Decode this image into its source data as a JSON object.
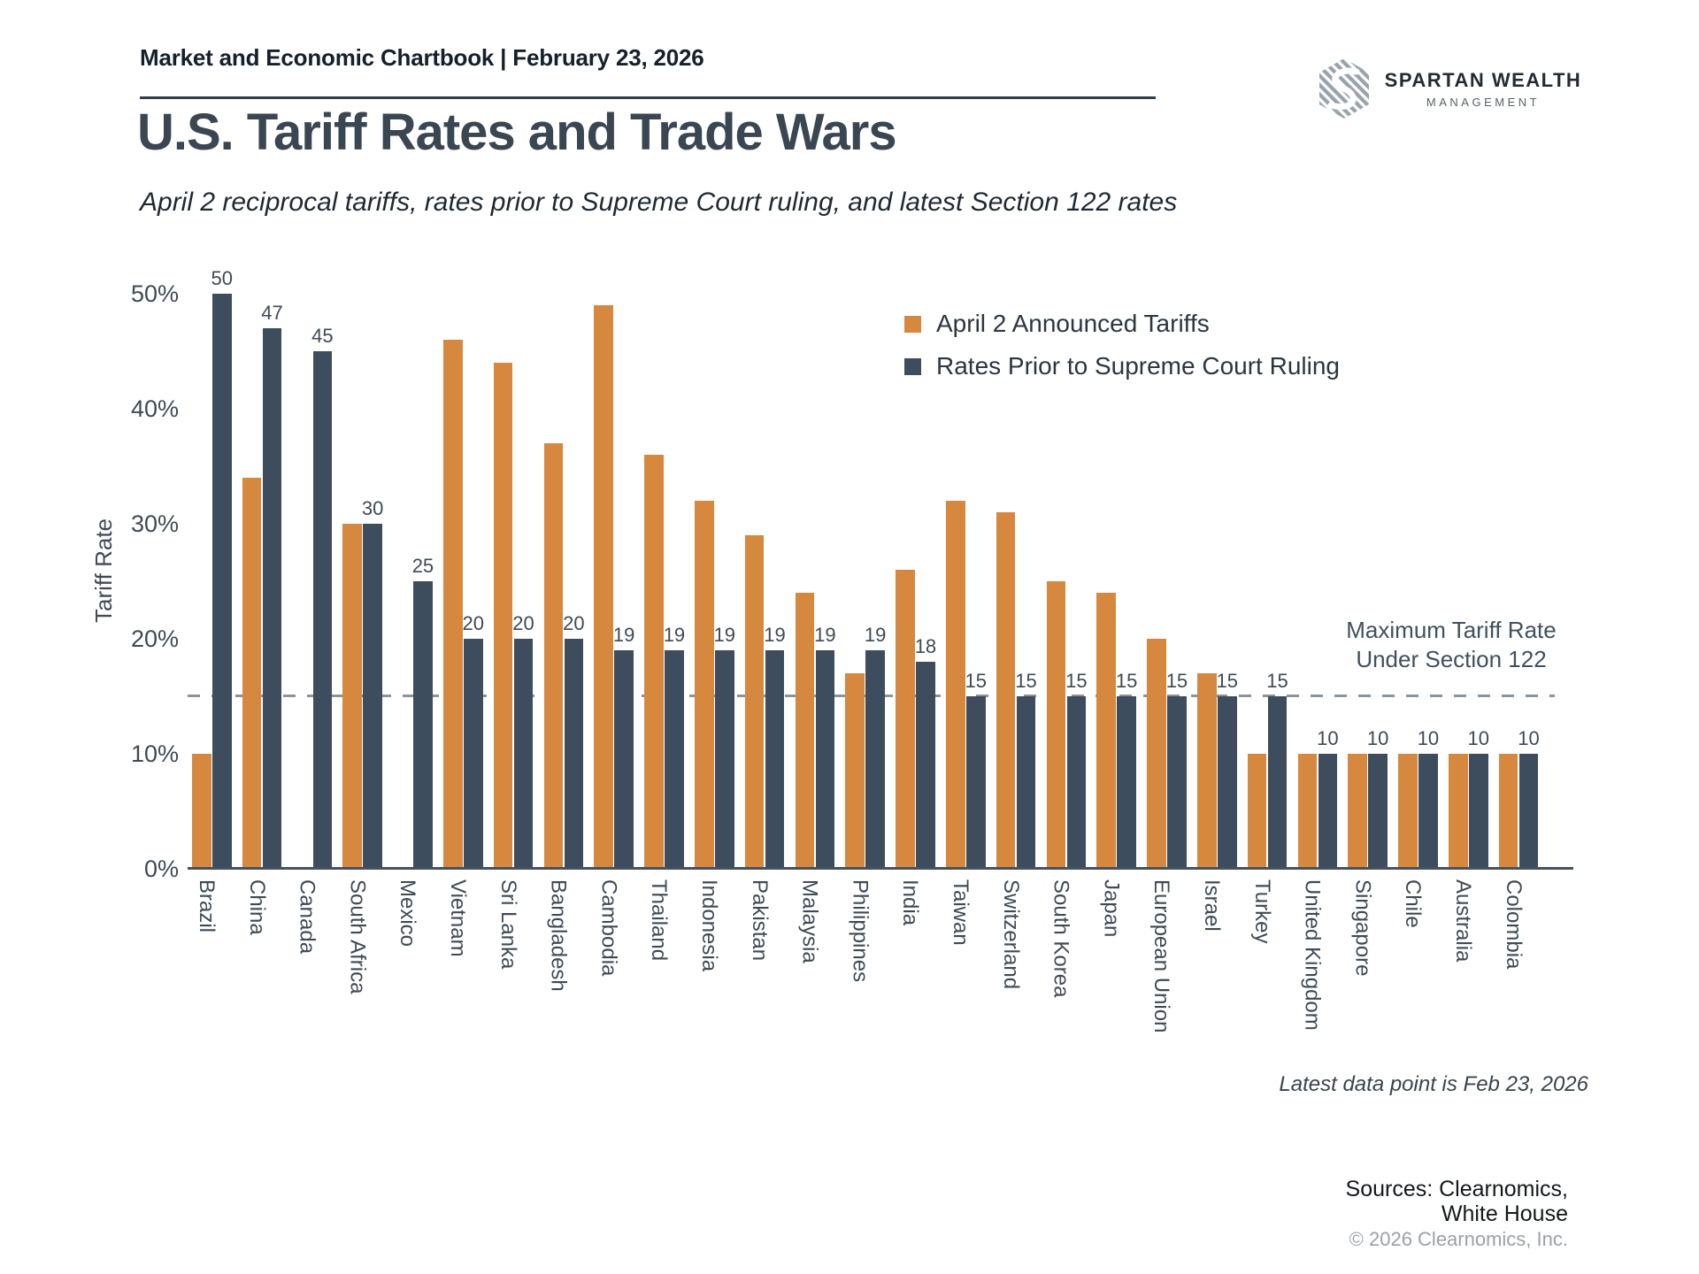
{
  "header": {
    "chartbook_label": "Market and Economic Chartbook | February 23, 2026",
    "logo_name": "SPARTAN WEALTH",
    "logo_subname": "MANAGEMENT"
  },
  "title": "U.S. Tariff Rates and Trade Wars",
  "subtitle": "April 2 reciprocal tariffs, rates prior to Supreme Court ruling, and latest Section 122 rates",
  "chart_data": {
    "type": "bar",
    "title": "U.S. Tariff Rates and Trade Wars",
    "xlabel": "",
    "ylabel": "Tariff Rate",
    "ylim": [
      0,
      50
    ],
    "yticks": [
      0,
      10,
      20,
      30,
      40,
      50
    ],
    "ytick_labels": [
      "0%",
      "10%",
      "20%",
      "30%",
      "40%",
      "50%"
    ],
    "grid": false,
    "legend_position": "top-right",
    "categories": [
      "Brazil",
      "China",
      "Canada",
      "South Africa",
      "Mexico",
      "Vietnam",
      "Sri Lanka",
      "Bangladesh",
      "Cambodia",
      "Thailand",
      "Indonesia",
      "Pakistan",
      "Malaysia",
      "Philippines",
      "India",
      "Taiwan",
      "Switzerland",
      "South Korea",
      "Japan",
      "European Union",
      "Israel",
      "Turkey",
      "United Kingdom",
      "Singapore",
      "Chile",
      "Australia",
      "Colombia"
    ],
    "series": [
      {
        "name": "April 2 Announced Tariffs",
        "color": "#D6893E",
        "values": [
          10,
          34,
          null,
          30,
          null,
          46,
          44,
          37,
          49,
          36,
          32,
          29,
          24,
          17,
          26,
          32,
          31,
          25,
          24,
          20,
          17,
          10,
          10,
          10,
          10,
          10,
          10
        ]
      },
      {
        "name": "Rates Prior to Supreme Court Ruling",
        "color": "#3D4D5E",
        "values": [
          50,
          47,
          45,
          30,
          25,
          20,
          20,
          20,
          19,
          19,
          19,
          19,
          19,
          19,
          18,
          15,
          15,
          15,
          15,
          15,
          15,
          15,
          10,
          10,
          10,
          10,
          10
        ],
        "data_labels_shown": true
      }
    ],
    "reference_line": {
      "value": 15,
      "label_line1": "Maximum Tariff Rate",
      "label_line2": "Under Section 122",
      "style": "dashed",
      "color": "#8b939b"
    },
    "footnote": "Latest data point is Feb 23, 2026"
  },
  "footer": {
    "sources_line1": "Sources: Clearnomics,",
    "sources_line2": "White House",
    "copyright": "© 2026 Clearnomics, Inc."
  }
}
